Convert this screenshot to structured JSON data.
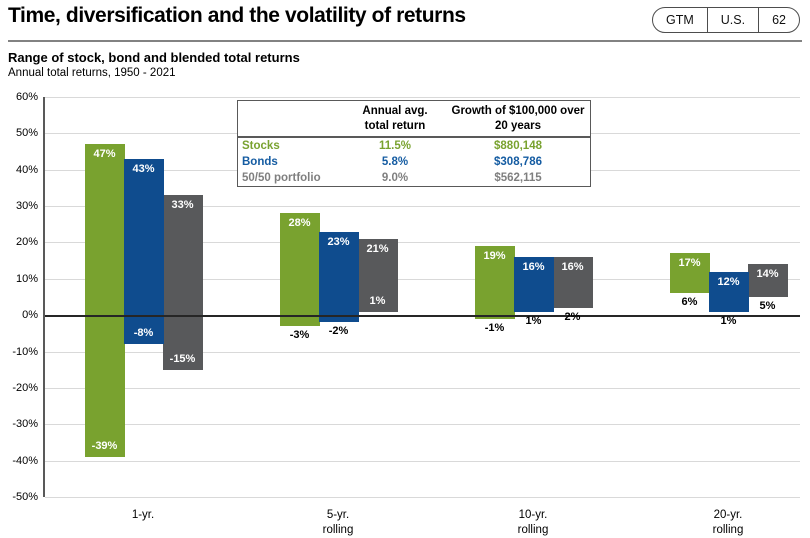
{
  "header": {
    "title": "Time, diversification and the volatility of returns",
    "badge": [
      "GTM",
      "U.S.",
      "62"
    ]
  },
  "chart_data": {
    "type": "bar",
    "subtype": "floating-range-bars",
    "title": "Range of stock, bond and blended total returns",
    "subtitle": "Annual total returns, 1950 - 2021",
    "categories": [
      "1-yr.",
      "5-yr. rolling",
      "10-yr. rolling",
      "20-yr. rolling"
    ],
    "series": [
      {
        "name": "Stocks",
        "color": "#79A22F",
        "ranges": [
          [
            47,
            -39
          ],
          [
            28,
            -3
          ],
          [
            19,
            -1
          ],
          [
            17,
            6
          ]
        ]
      },
      {
        "name": "Bonds",
        "color": "#0F4C8E",
        "ranges": [
          [
            43,
            -8
          ],
          [
            23,
            -2
          ],
          [
            16,
            1
          ],
          [
            12,
            1
          ]
        ]
      },
      {
        "name": "50/50 portfolio",
        "color": "#58595B",
        "ranges": [
          [
            33,
            -15
          ],
          [
            21,
            1
          ],
          [
            16,
            2
          ],
          [
            14,
            5
          ]
        ]
      }
    ],
    "xlabel": "",
    "ylabel": "",
    "ylim": [
      -50,
      60
    ],
    "y_tick_step": 10,
    "y_tick_suffix": "%",
    "grid": true,
    "legend_position": "none"
  },
  "table": {
    "col_headers": [
      {
        "line1": "Annual avg.",
        "line2": "total return"
      },
      {
        "line1": "Growth of $100,000 over",
        "line2": "20 years"
      }
    ],
    "rows": [
      {
        "label": "Stocks",
        "avg_return": "11.5%",
        "growth": "$880,148",
        "color": "#79A22F"
      },
      {
        "label": "Bonds",
        "avg_return": "5.8%",
        "growth": "$308,786",
        "color": "#155CA2"
      },
      {
        "label": "50/50 portfolio",
        "avg_return": "9.0%",
        "growth": "$562,115",
        "color": "#7F7F7F"
      }
    ]
  }
}
